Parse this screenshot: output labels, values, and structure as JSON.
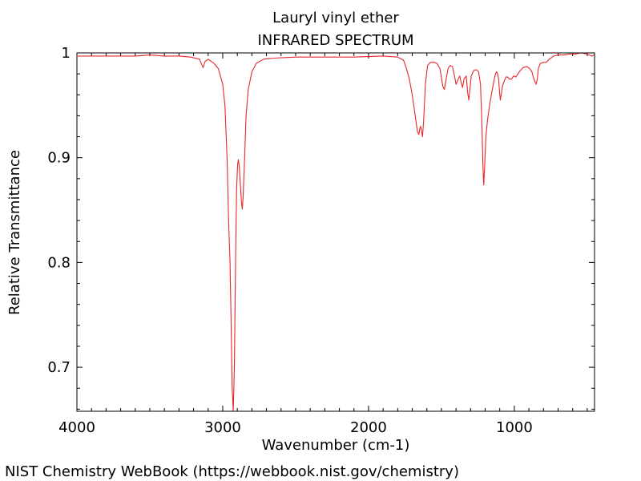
{
  "chart_data": {
    "type": "line",
    "title": "Lauryl vinyl ether",
    "subtitle": "INFRARED SPECTRUM",
    "xlabel": "Wavenumber (cm-1)",
    "ylabel": "Relative Transmittance",
    "xlim": [
      4000,
      450
    ],
    "ylim": [
      0.658,
      1.0
    ],
    "x_axis_reversed": true,
    "x_ticks": [
      4000,
      3000,
      2000,
      1000
    ],
    "x_tick_labels": [
      "4000",
      "3000",
      "2000",
      "1000"
    ],
    "y_ticks": [
      1.0,
      0.9,
      0.8,
      0.7
    ],
    "y_tick_labels": [
      "1",
      "0.9",
      "0.8",
      "0.7"
    ],
    "grid": false,
    "series": [
      {
        "color": "#e8262a",
        "points": [
          [
            3995,
            0.997
          ],
          [
            3800,
            0.997
          ],
          [
            3600,
            0.997
          ],
          [
            3500,
            0.998
          ],
          [
            3400,
            0.997
          ],
          [
            3300,
            0.997
          ],
          [
            3220,
            0.996
          ],
          [
            3160,
            0.994
          ],
          [
            3135,
            0.986
          ],
          [
            3120,
            0.992
          ],
          [
            3100,
            0.994
          ],
          [
            3060,
            0.99
          ],
          [
            3030,
            0.985
          ],
          [
            3000,
            0.97
          ],
          [
            2985,
            0.95
          ],
          [
            2970,
            0.9
          ],
          [
            2960,
            0.84
          ],
          [
            2950,
            0.8
          ],
          [
            2942,
            0.74
          ],
          [
            2935,
            0.68
          ],
          [
            2928,
            0.658
          ],
          [
            2920,
            0.7
          ],
          [
            2912,
            0.8
          ],
          [
            2905,
            0.87
          ],
          [
            2898,
            0.893
          ],
          [
            2893,
            0.898
          ],
          [
            2888,
            0.893
          ],
          [
            2880,
            0.878
          ],
          [
            2872,
            0.858
          ],
          [
            2866,
            0.851
          ],
          [
            2860,
            0.862
          ],
          [
            2850,
            0.9
          ],
          [
            2840,
            0.94
          ],
          [
            2825,
            0.965
          ],
          [
            2800,
            0.982
          ],
          [
            2770,
            0.99
          ],
          [
            2720,
            0.994
          ],
          [
            2650,
            0.995
          ],
          [
            2500,
            0.996
          ],
          [
            2300,
            0.996
          ],
          [
            2100,
            0.996
          ],
          [
            1900,
            0.997
          ],
          [
            1800,
            0.996
          ],
          [
            1760,
            0.993
          ],
          [
            1740,
            0.985
          ],
          [
            1720,
            0.975
          ],
          [
            1700,
            0.96
          ],
          [
            1680,
            0.94
          ],
          [
            1665,
            0.925
          ],
          [
            1655,
            0.922
          ],
          [
            1648,
            0.928
          ],
          [
            1643,
            0.93
          ],
          [
            1637,
            0.926
          ],
          [
            1630,
            0.92
          ],
          [
            1622,
            0.935
          ],
          [
            1610,
            0.97
          ],
          [
            1595,
            0.988
          ],
          [
            1575,
            0.991
          ],
          [
            1550,
            0.991
          ],
          [
            1530,
            0.99
          ],
          [
            1510,
            0.985
          ],
          [
            1490,
            0.968
          ],
          [
            1480,
            0.965
          ],
          [
            1468,
            0.975
          ],
          [
            1455,
            0.985
          ],
          [
            1440,
            0.988
          ],
          [
            1425,
            0.987
          ],
          [
            1410,
            0.978
          ],
          [
            1400,
            0.97
          ],
          [
            1385,
            0.975
          ],
          [
            1375,
            0.978
          ],
          [
            1365,
            0.972
          ],
          [
            1355,
            0.967
          ],
          [
            1345,
            0.975
          ],
          [
            1330,
            0.978
          ],
          [
            1320,
            0.962
          ],
          [
            1312,
            0.955
          ],
          [
            1305,
            0.965
          ],
          [
            1295,
            0.978
          ],
          [
            1280,
            0.983
          ],
          [
            1260,
            0.984
          ],
          [
            1245,
            0.982
          ],
          [
            1232,
            0.97
          ],
          [
            1222,
            0.93
          ],
          [
            1215,
            0.89
          ],
          [
            1210,
            0.874
          ],
          [
            1204,
            0.89
          ],
          [
            1195,
            0.92
          ],
          [
            1185,
            0.935
          ],
          [
            1170,
            0.95
          ],
          [
            1155,
            0.962
          ],
          [
            1140,
            0.973
          ],
          [
            1130,
            0.98
          ],
          [
            1122,
            0.982
          ],
          [
            1115,
            0.98
          ],
          [
            1108,
            0.975
          ],
          [
            1102,
            0.963
          ],
          [
            1096,
            0.955
          ],
          [
            1090,
            0.96
          ],
          [
            1082,
            0.968
          ],
          [
            1070,
            0.973
          ],
          [
            1058,
            0.977
          ],
          [
            1045,
            0.977
          ],
          [
            1035,
            0.975
          ],
          [
            1020,
            0.975
          ],
          [
            1005,
            0.978
          ],
          [
            990,
            0.977
          ],
          [
            975,
            0.98
          ],
          [
            960,
            0.983
          ],
          [
            940,
            0.986
          ],
          [
            915,
            0.987
          ],
          [
            895,
            0.985
          ],
          [
            880,
            0.982
          ],
          [
            870,
            0.977
          ],
          [
            860,
            0.973
          ],
          [
            850,
            0.97
          ],
          [
            843,
            0.975
          ],
          [
            835,
            0.985
          ],
          [
            822,
            0.99
          ],
          [
            800,
            0.991
          ],
          [
            780,
            0.991
          ],
          [
            760,
            0.994
          ],
          [
            730,
            0.997
          ],
          [
            700,
            0.998
          ],
          [
            660,
            0.998
          ],
          [
            620,
            0.999
          ],
          [
            580,
            0.999
          ],
          [
            540,
            1.0
          ],
          [
            505,
            0.999
          ],
          [
            470,
            0.997
          ],
          [
            453,
            0.998
          ]
        ]
      }
    ]
  },
  "footer": {
    "source_text": "NIST Chemistry WebBook (https://webbook.nist.gov/chemistry)"
  }
}
